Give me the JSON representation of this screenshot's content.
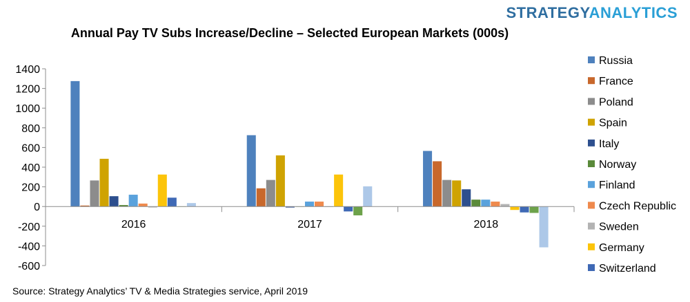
{
  "brand": {
    "part1": "STRATEGY",
    "part2": "ANALYTICS"
  },
  "source": "Source: Strategy Analytics’ TV & Media Strategies service, April 2019",
  "chart_data": {
    "type": "bar",
    "title": "Annual Pay TV Subs Increase/Decline – Selected European Markets (000s)",
    "xlabel": "",
    "ylabel": "",
    "categories": [
      "2016",
      "2017",
      "2018"
    ],
    "ylim": [
      -600,
      1400
    ],
    "yticks": [
      -600,
      -400,
      -200,
      0,
      200,
      400,
      600,
      800,
      1000,
      1200,
      1400
    ],
    "grid": false,
    "legend_position": "right",
    "series": [
      {
        "name": "Russia",
        "color": "#4e81bd",
        "values": [
          1275,
          725,
          565
        ]
      },
      {
        "name": "France",
        "color": "#c8682c",
        "values": [
          10,
          185,
          460
        ]
      },
      {
        "name": "Poland",
        "color": "#8c8c8c",
        "values": [
          265,
          270,
          270
        ]
      },
      {
        "name": "Spain",
        "color": "#cfa302",
        "values": [
          485,
          520,
          265
        ]
      },
      {
        "name": "Italy",
        "color": "#2d4f8e",
        "values": [
          105,
          -10,
          175
        ]
      },
      {
        "name": "Norway",
        "color": "#5a8a3a",
        "values": [
          15,
          0,
          70
        ]
      },
      {
        "name": "Finland",
        "color": "#5aa2dc",
        "values": [
          120,
          50,
          70
        ]
      },
      {
        "name": "Czech Republic",
        "color": "#ef8a4d",
        "values": [
          30,
          50,
          50
        ]
      },
      {
        "name": "Sweden",
        "color": "#b3b3b3",
        "values": [
          -10,
          -5,
          25
        ]
      },
      {
        "name": "Germany",
        "color": "#fcc40a",
        "values": [
          325,
          325,
          -35
        ]
      },
      {
        "name": "Switzerland",
        "color": "#3f69b5",
        "values": [
          90,
          -50,
          -60
        ]
      },
      {
        "name": "",
        "color": "#6da24a",
        "values": [
          0,
          -90,
          -65
        ]
      },
      {
        "name": "",
        "color": "#adc8e8",
        "values": [
          35,
          205,
          -415
        ]
      }
    ]
  }
}
